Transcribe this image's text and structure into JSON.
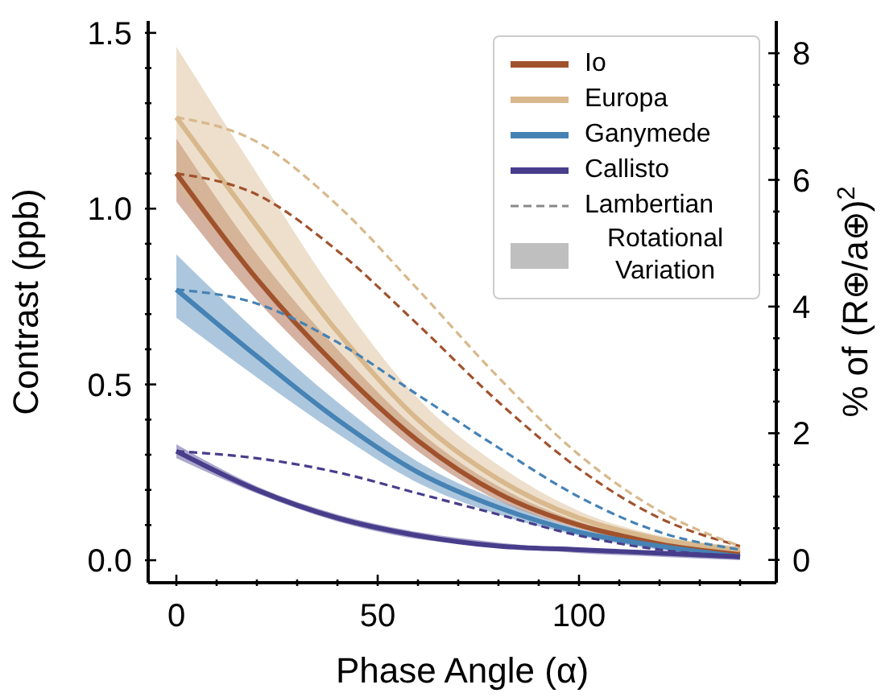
{
  "chart_data": {
    "type": "line",
    "xlabel": "Phase Angle (α)",
    "ylabel": "Contrast (ppb)",
    "y2label": "% of (R⊕/a⊕)$^{2}$",
    "x": [
      0,
      20,
      40,
      60,
      80,
      100,
      120,
      140
    ],
    "xlim": [
      -7,
      149
    ],
    "xticks": [
      0,
      {
        "value": 10,
        "label": null
      },
      {
        "value": 20,
        "label": null
      },
      {
        "value": 30,
        "label": null
      },
      {
        "value": 40,
        "label": null
      },
      50,
      {
        "value": 60,
        "label": null
      },
      {
        "value": 70,
        "label": null
      },
      {
        "value": 80,
        "label": null
      },
      {
        "value": 90,
        "label": null
      },
      100,
      {
        "value": 110,
        "label": null
      },
      {
        "value": 120,
        "label": null
      },
      {
        "value": 130,
        "label": null
      },
      {
        "value": 140,
        "label": null
      }
    ],
    "ylim": [
      -0.064,
      1.534
    ],
    "yticks": [
      {
        "value": 0,
        "label": "0.0"
      },
      {
        "value": 0.1,
        "label": null
      },
      {
        "value": 0.2,
        "label": null
      },
      {
        "value": 0.3,
        "label": null
      },
      {
        "value": 0.4,
        "label": null
      },
      0.5,
      {
        "value": 0.6,
        "label": null
      },
      {
        "value": 0.7,
        "label": null
      },
      {
        "value": 0.8,
        "label": null
      },
      {
        "value": 0.9,
        "label": null
      },
      {
        "value": 1,
        "label": "1.0"
      },
      {
        "value": 1.1,
        "label": null
      },
      {
        "value": 1.2,
        "label": null
      },
      {
        "value": 1.3,
        "label": null
      },
      {
        "value": 1.4,
        "label": null
      },
      1.5
    ],
    "y2lim": [
      -0.36,
      8.51
    ],
    "y2ticks": [
      0,
      {
        "value": 0.5,
        "label": null
      },
      {
        "value": 1,
        "label": null
      },
      {
        "value": 1.5,
        "label": null
      },
      2,
      {
        "value": 2.5,
        "label": null
      },
      {
        "value": 3,
        "label": null
      },
      {
        "value": 3.5,
        "label": null
      },
      4,
      {
        "value": 4.5,
        "label": null
      },
      {
        "value": 5,
        "label": null
      },
      {
        "value": 5.5,
        "label": null
      },
      6,
      {
        "value": 6.5,
        "label": null
      },
      {
        "value": 7,
        "label": null
      },
      {
        "value": 7.5,
        "label": null
      },
      8
    ],
    "grid": false,
    "legend": "top right",
    "marker": "none",
    "series": [
      {
        "name": "Io",
        "color": "#a0522d",
        "line_style": "solid",
        "values": [
          1.1,
          0.8,
          0.55,
          0.34,
          0.19,
          0.1,
          0.05,
          0.02
        ],
        "lower": [
          1.02,
          0.74,
          0.51,
          0.31,
          0.17,
          0.09,
          0.04,
          0.01
        ],
        "upper": [
          1.2,
          0.87,
          0.6,
          0.37,
          0.21,
          0.11,
          0.06,
          0.02
        ]
      },
      {
        "name": "Europa",
        "color": "#d8b88c",
        "line_style": "solid",
        "values": [
          1.26,
          0.95,
          0.65,
          0.4,
          0.23,
          0.12,
          0.06,
          0.03
        ],
        "lower": [
          1.06,
          0.8,
          0.55,
          0.34,
          0.19,
          0.1,
          0.05,
          0.02
        ],
        "upper": [
          1.46,
          1.1,
          0.75,
          0.46,
          0.27,
          0.14,
          0.07,
          0.04
        ]
      },
      {
        "name": "Ganymede",
        "color": "#4682b4",
        "line_style": "solid",
        "values": [
          0.77,
          0.58,
          0.4,
          0.25,
          0.15,
          0.08,
          0.04,
          0.01
        ],
        "lower": [
          0.69,
          0.52,
          0.36,
          0.22,
          0.13,
          0.07,
          0.03,
          0.01
        ],
        "upper": [
          0.87,
          0.65,
          0.45,
          0.28,
          0.17,
          0.09,
          0.05,
          0.02
        ]
      },
      {
        "name": "Callisto",
        "color": "#483d8b",
        "line_style": "solid",
        "values": [
          0.31,
          0.2,
          0.12,
          0.07,
          0.04,
          0.03,
          0.02,
          0.01
        ],
        "lower": [
          0.29,
          0.19,
          0.11,
          0.06,
          0.04,
          0.02,
          0.01,
          0.0
        ],
        "upper": [
          0.33,
          0.21,
          0.13,
          0.08,
          0.05,
          0.03,
          0.02,
          0.01
        ]
      },
      {
        "color": "#a0522d",
        "line_style": "dashed",
        "values": [
          1.1,
          1.04,
          0.88,
          0.67,
          0.45,
          0.26,
          0.12,
          0.04
        ]
      },
      {
        "color": "#d8b88c",
        "line_style": "dashed",
        "values": [
          1.26,
          1.19,
          1.01,
          0.77,
          0.52,
          0.3,
          0.14,
          0.04
        ]
      },
      {
        "color": "#4682b4",
        "line_style": "dashed",
        "values": [
          0.77,
          0.73,
          0.62,
          0.47,
          0.32,
          0.18,
          0.08,
          0.03
        ]
      },
      {
        "color": "#483d8b",
        "line_style": "dashed",
        "values": [
          0.31,
          0.29,
          0.25,
          0.19,
          0.13,
          0.07,
          0.03,
          0.01
        ]
      }
    ],
    "annotations": [
      "Lambertian",
      "Rotational Variation"
    ]
  }
}
